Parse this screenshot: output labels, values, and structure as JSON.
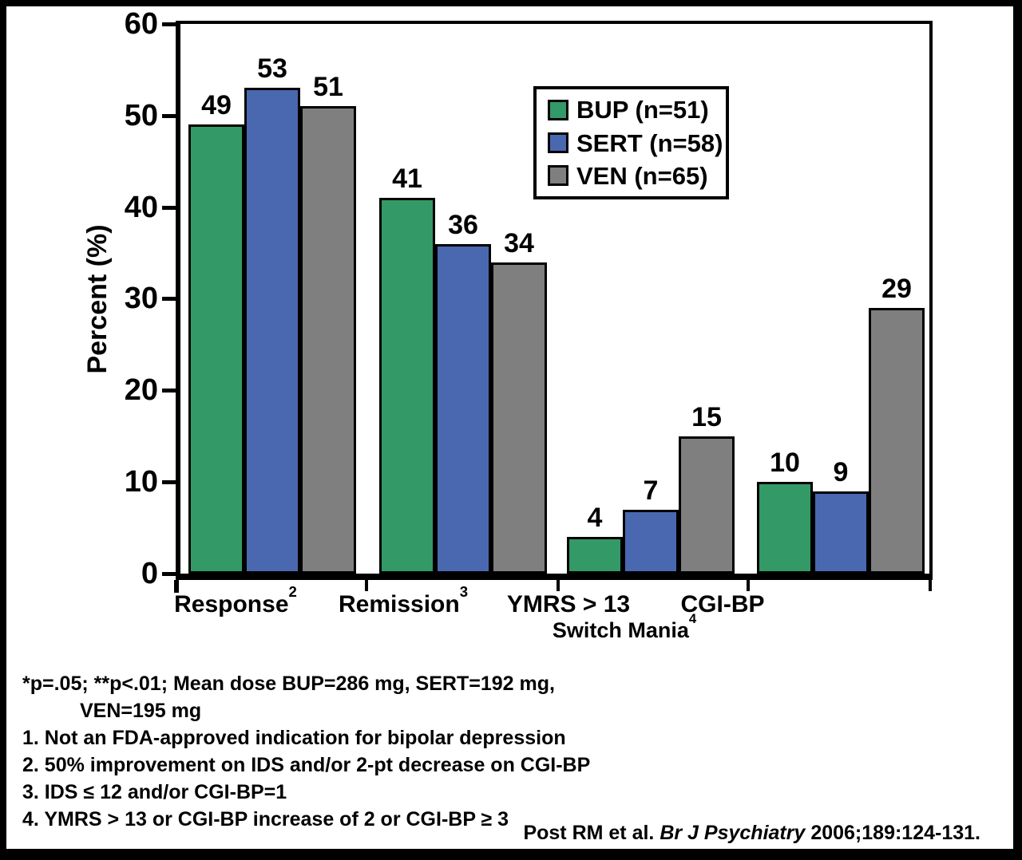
{
  "chart_data": {
    "type": "bar",
    "title": "",
    "ylabel": "Percent (%)",
    "ylim": [
      0,
      60
    ],
    "yticks": [
      0,
      10,
      20,
      30,
      40,
      50,
      60
    ],
    "grid": false,
    "legend_position": "top-right inside plot",
    "categories": [
      "Response",
      "Remission",
      "YMRS > 13 (Switch Mania)",
      "CGI-BP (Switch Mania)"
    ],
    "series": [
      {
        "name": "BUP (n=51)",
        "color": "#339966",
        "values": [
          49,
          41,
          4,
          10
        ]
      },
      {
        "name": "SERT (n=58)",
        "color": "#4A68B0",
        "values": [
          53,
          36,
          7,
          9
        ]
      },
      {
        "name": "VEN (n=65)",
        "color": "#7F7F7F",
        "values": [
          51,
          34,
          15,
          29
        ]
      }
    ]
  },
  "x_axis": {
    "tick_labels": [
      {
        "text": "Response",
        "sup": "2"
      },
      {
        "text": "Remission",
        "sup": "3"
      },
      {
        "text": "YMRS > 13",
        "sup": ""
      },
      {
        "text": "CGI-BP",
        "sup": ""
      }
    ],
    "sub_label": {
      "text": "Switch Mania",
      "sup": "4"
    }
  },
  "footnotes": {
    "lines": [
      "*p=.05; **p<.01; Mean dose BUP=286 mg, SERT=192 mg,",
      "VEN=195 mg",
      "1. Not an FDA-approved indication for bipolar depression",
      "2. 50% improvement on IDS and/or 2-pt decrease on CGI-BP",
      "3. IDS ≤ 12 and/or CGI-BP=1",
      "4. YMRS > 13 or CGI-BP increase of 2 or CGI-BP ≥ 3"
    ]
  },
  "citation": {
    "prefix": "Post RM et al. ",
    "journal": "Br J Psychiatry",
    "suffix": " 2006;189:124-131."
  }
}
